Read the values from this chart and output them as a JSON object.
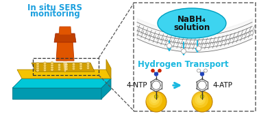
{
  "bg_color": "#ffffff",
  "left_panel": {
    "title_line1": "In situ SERS",
    "title_line2": "monitoring",
    "title_color": "#1a9fde",
    "title_fontsize": 8.5,
    "cyan_layer_color": "#00c8d8",
    "cyan_side_color": "#009ab0",
    "yellow_top_color": "#f5c400",
    "yellow_side_color": "#d4a000",
    "np_array_color": "#e8b800",
    "np_dot_color": "#f5d060",
    "lens_body_color": "#e05500",
    "lens_dark_color": "#c04000",
    "beam_outer_color": "#ffddcc",
    "beam_inner_color": "#fff5f0",
    "dashed_box_color": "#333333"
  },
  "right_panel": {
    "dashed_border_color": "#666666",
    "cloud_color": "#3dd4f0",
    "cloud_text1": "NaBH₄",
    "cloud_text2": "solution",
    "cloud_text_color": "#111111",
    "cloud_fontsize": 8.5,
    "graphene_color": "#555555",
    "graphene_fill": "#e8e8e8",
    "arrow_color": "#1ab8e0",
    "transport_text": "Hydrogen Transport",
    "transport_color": "#1ab8e0",
    "transport_fontsize": 8.5,
    "label_4ntp": "4-NTP",
    "label_4atp": "4-ATP",
    "label_fontsize": 7.5,
    "label_color": "#111111",
    "gold_color": "#f0b800",
    "gold_highlight": "#ffe066",
    "gold_shadow": "#c08000",
    "reaction_arrow_color": "#1ab8e0",
    "h_atom_color": "#dddddd",
    "n_color": "#2244cc",
    "o_color": "#cc2200",
    "bond_color": "#333333",
    "ring_color": "#555555"
  },
  "connect_line_color": "#555555"
}
